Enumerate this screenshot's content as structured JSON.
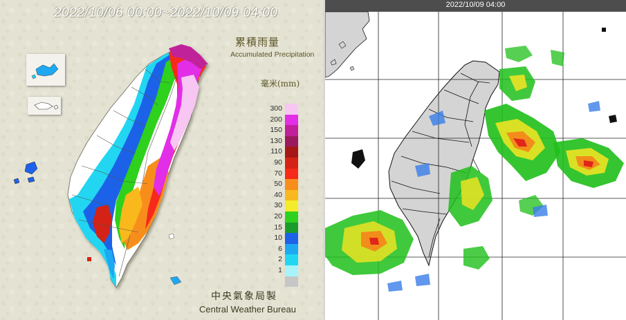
{
  "left_panel": {
    "title": "2022/10/06 00:00~2022/10/09 04:00",
    "legend_title_zh": "累積雨量",
    "legend_title_en": "Accumulated Precipitation",
    "unit": "毫米(mm)",
    "scale": [
      {
        "label": "300",
        "color": "#f7c6f2"
      },
      {
        "label": "200",
        "color": "#e22ee6"
      },
      {
        "label": "150",
        "color": "#c0209a"
      },
      {
        "label": "130",
        "color": "#9c1a5e"
      },
      {
        "label": "110",
        "color": "#a61818"
      },
      {
        "label": "90",
        "color": "#d42316"
      },
      {
        "label": "70",
        "color": "#f52a1a"
      },
      {
        "label": "50",
        "color": "#f78e1c"
      },
      {
        "label": "40",
        "color": "#f9b81e"
      },
      {
        "label": "30",
        "color": "#f4ec2a"
      },
      {
        "label": "20",
        "color": "#2ed11d"
      },
      {
        "label": "15",
        "color": "#1a9c2a"
      },
      {
        "label": "10",
        "color": "#1d62e8"
      },
      {
        "label": "6",
        "color": "#1ea8f2"
      },
      {
        "label": "2",
        "color": "#22d6f2"
      },
      {
        "label": "1",
        "color": "#a6f4fa"
      },
      {
        "label": "",
        "color": "#c6c6c6"
      }
    ],
    "footer_zh": "中央氣象局製",
    "footer_en": "Central Weather Bureau"
  },
  "right_panel": {
    "title": "2022/10/09 04:00",
    "colors": {
      "header": "#4d4d4d",
      "land": "#d4d4d4",
      "outline": "#111111",
      "grid": "#222222"
    }
  }
}
